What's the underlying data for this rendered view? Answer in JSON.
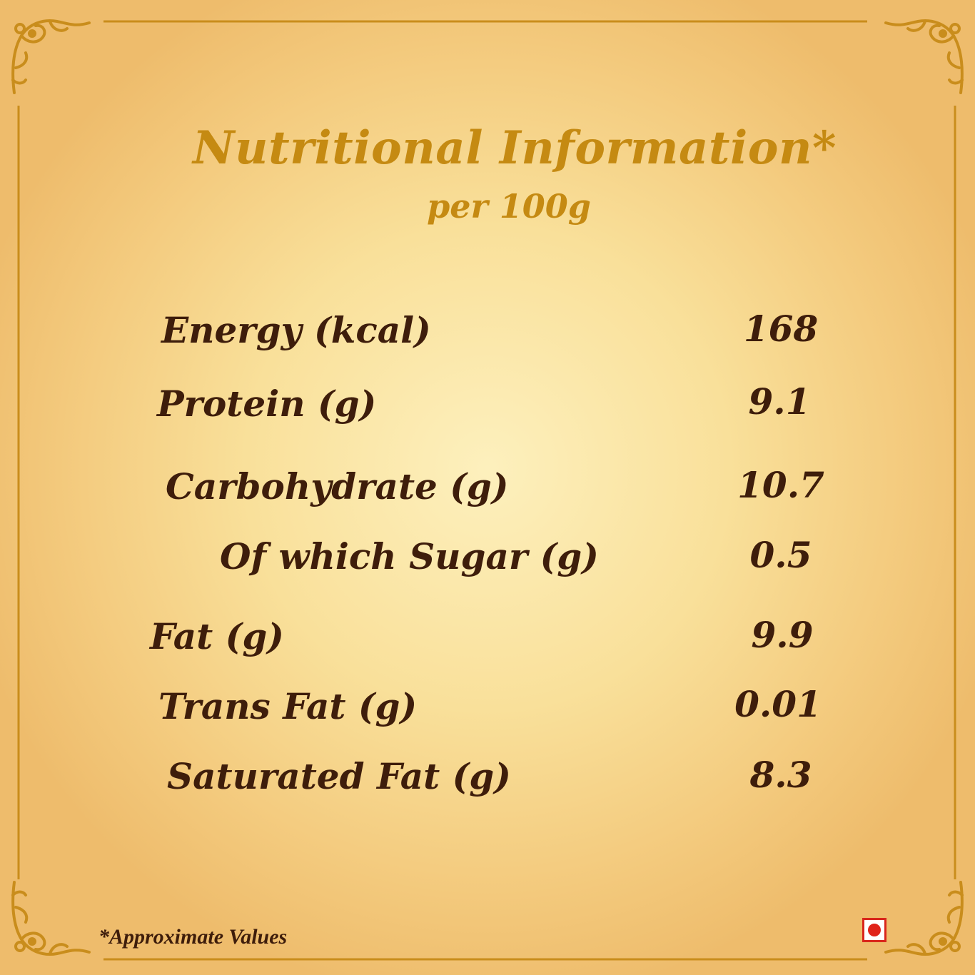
{
  "title": "Nutritional Information*",
  "subtitle": "per 100g",
  "nutrients": [
    {
      "label": "Energy (kcal)",
      "value": "168"
    },
    {
      "label": "Protein (g)",
      "value": "9.1"
    },
    {
      "label": "Carbohydrate (g)",
      "value": "10.7"
    },
    {
      "label": "Of which Sugar (g)",
      "value": "0.5"
    },
    {
      "label": "Fat (g)",
      "value": "9.9"
    },
    {
      "label": "Trans Fat (g)",
      "value": "0.01"
    },
    {
      "label": "Saturated Fat (g)",
      "value": "8.3"
    }
  ],
  "footnote": "*Approximate Values",
  "colors": {
    "title": "#c58a12",
    "text": "#3e1d0b",
    "frame": "#c98d1c",
    "background": "#f9e09a",
    "veg_mark": "#d9261c"
  },
  "icons": {
    "corner_ornament": "ornamental-flourish-icon",
    "diet_mark": "non-vegetarian-mark-icon"
  }
}
